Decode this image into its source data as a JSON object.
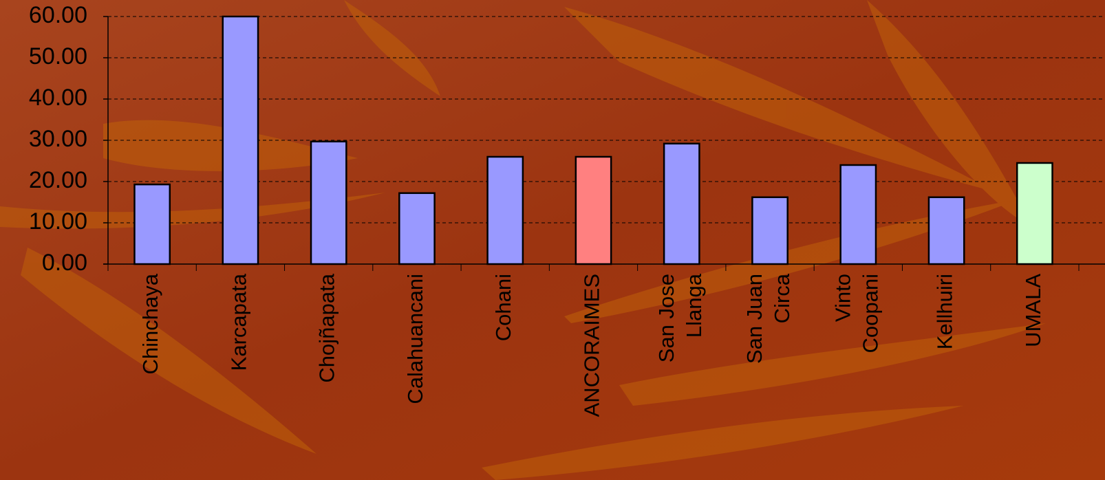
{
  "chart_data": {
    "type": "bar",
    "categories": [
      "Chinchaya",
      "Karcapata",
      "Chojñapata",
      "Calahuancani",
      "Cohani",
      "ANCORAIMES",
      "San Jose Llanga",
      "San Juan Circa",
      "Vinto Coopani",
      "Kellhuiri",
      "UMALA"
    ],
    "values": [
      19.3,
      60,
      29.7,
      17.2,
      26,
      26,
      29.2,
      16.2,
      24,
      16.2,
      24.5
    ],
    "colors": [
      "#9999ff",
      "#9999ff",
      "#9999ff",
      "#9999ff",
      "#9999ff",
      "#ff8080",
      "#9999ff",
      "#9999ff",
      "#9999ff",
      "#9999ff",
      "#ccffcc"
    ],
    "ylim": [
      0,
      60
    ],
    "yticks": [
      {
        "value": 0,
        "label": "0.00"
      },
      {
        "value": 10,
        "label": "10.00"
      },
      {
        "value": 20,
        "label": "20.00"
      },
      {
        "value": 30,
        "label": "30.00"
      },
      {
        "value": 40,
        "label": "40.00"
      },
      {
        "value": 50,
        "label": "50.00"
      },
      {
        "value": 60,
        "label": "60.00"
      }
    ],
    "grid": true
  }
}
